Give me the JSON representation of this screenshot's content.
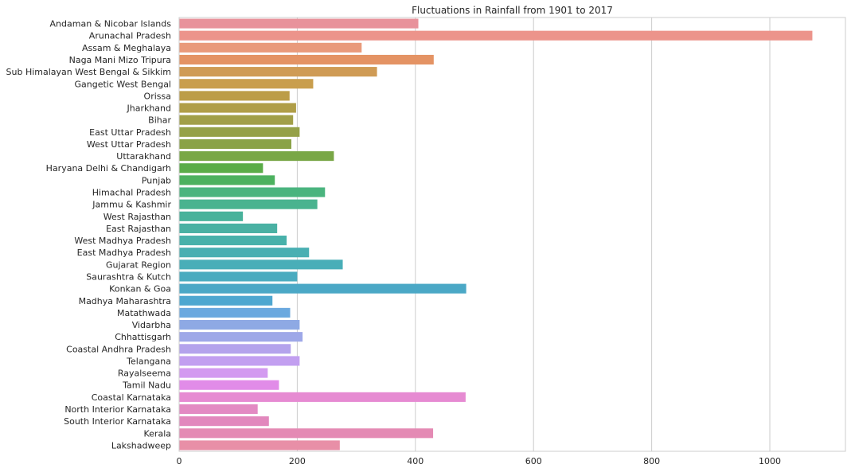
{
  "chart_data": {
    "type": "bar",
    "orientation": "horizontal",
    "title": "Fluctuations in Rainfall from 1901 to 2017",
    "xlabel": "",
    "ylabel": "",
    "xlim": [
      0,
      1128
    ],
    "xticks": [
      0,
      200,
      400,
      600,
      800,
      1000
    ],
    "grid": "vertical",
    "categories": [
      "Andaman & Nicobar Islands",
      "Arunachal Pradesh",
      "Assam & Meghalaya",
      "Naga Mani Mizo Tripura",
      "Sub Himalayan West Bengal & Sikkim",
      "Gangetic West Bengal",
      "Orissa",
      "Jharkhand",
      "Bihar",
      "East Uttar Pradesh",
      "West Uttar Pradesh",
      "Uttarakhand",
      "Haryana Delhi & Chandigarh",
      "Punjab",
      "Himachal Pradesh",
      "Jammu & Kashmir",
      "West Rajasthan",
      "East Rajasthan",
      "West Madhya Pradesh",
      "East Madhya Pradesh",
      "Gujarat Region",
      "Saurashtra & Kutch",
      "Konkan & Goa",
      "Madhya Maharashtra",
      "Matathwada",
      "Vidarbha",
      "Chhattisgarh",
      "Coastal Andhra Pradesh",
      "Telangana",
      "Rayalseema",
      "Tamil Nadu",
      "Coastal Karnataka",
      "North Interior Karnataka",
      "South Interior Karnataka",
      "Kerala",
      "Lakshadweep"
    ],
    "values": [
      405,
      1072,
      309,
      431,
      335,
      227,
      187,
      198,
      193,
      204,
      190,
      262,
      142,
      162,
      247,
      234,
      108,
      166,
      182,
      220,
      277,
      200,
      486,
      158,
      188,
      204,
      209,
      189,
      204,
      150,
      169,
      485,
      133,
      152,
      430,
      272
    ],
    "colors": [
      "#e8929b",
      "#ec948b",
      "#e99a7b",
      "#e49364",
      "#cf9b55",
      "#c99e4d",
      "#bc9d48",
      "#b09e48",
      "#a19f48",
      "#95a148",
      "#8aa247",
      "#79a746",
      "#5aac48",
      "#4cb15f",
      "#4ab47e",
      "#4ab38f",
      "#48b29b",
      "#4ab1a3",
      "#48b1aa",
      "#49afb2",
      "#49aeb8",
      "#4aabbf",
      "#4ba8c6",
      "#4ea7d0",
      "#6ba9df",
      "#8ea9e4",
      "#9ea8e8",
      "#b4a3ec",
      "#c29ff0",
      "#d39af0",
      "#e18ce8",
      "#e68bd2",
      "#e38ac3",
      "#e288bd",
      "#e48ab4",
      "#e88fa7"
    ]
  }
}
